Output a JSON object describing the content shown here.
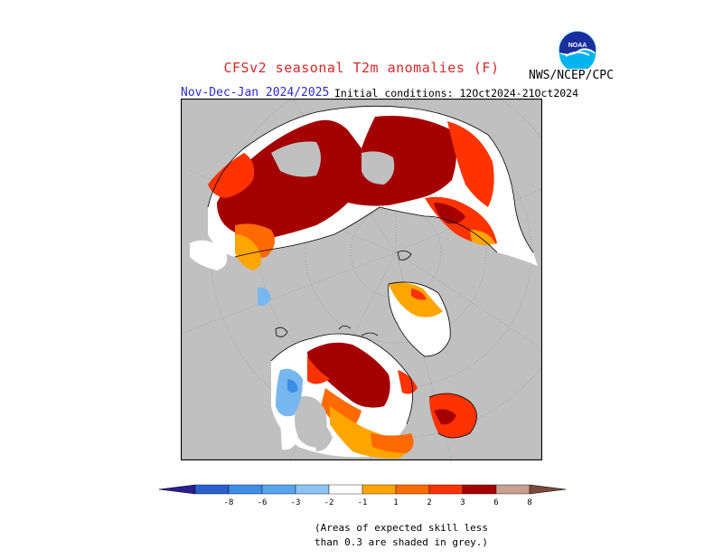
{
  "title": "CFSv2 seasonal T2m anomalies (F)",
  "season": "Nov-Dec-Jan 2024/2025",
  "initial_conditions": "Initial conditions: 12Oct2024-21Oct2024",
  "agency": "NWS/NCEP/CPC",
  "logo_text": "NOAA",
  "note_line1": "(Areas of expected skill less",
  "note_line2": "than 0.3 are shaded in grey.)",
  "colors": {
    "grey": "#c0c0c0",
    "white": "#ffffff",
    "cold4": "#5a4fcf",
    "cold3": "#2a5fd0",
    "cold2": "#3d8fe6",
    "cold1": "#78b6f0",
    "warm1": "#ffa500",
    "warm2": "#ff6a00",
    "warm3": "#ff3300",
    "warm4": "#a50000",
    "warm5": "#c8a090",
    "title_red": "#d62828",
    "season_blue": "#2b2bd6"
  },
  "colorbar": {
    "labels": [
      "-8",
      "-6",
      "-3",
      "-2",
      "-1",
      "1",
      "2",
      "3",
      "6",
      "8"
    ],
    "colors": [
      "#3a2fc0",
      "#2a5fd0",
      "#3d8fe6",
      "#5aa6ee",
      "#8cc4f4",
      "#ffffff",
      "#ffa500",
      "#ff6a00",
      "#ff3300",
      "#a50000",
      "#c8a090",
      "#8a5a4a"
    ]
  }
}
